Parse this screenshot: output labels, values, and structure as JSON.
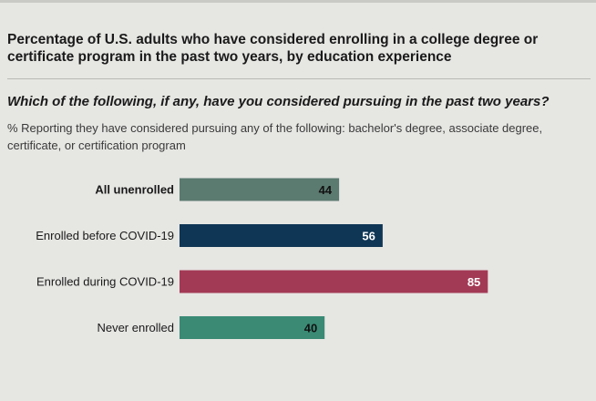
{
  "header": {
    "title": "Percentage of U.S. adults who have considered enrolling in a college degree or certificate program in the past two years, by education experience",
    "question": "Which of the following, if any, have you considered pursuing in the past two years?",
    "subtitle": "% Reporting they have considered pursuing any of the following: bachelor's degree, associate degree, certificate, or certification program"
  },
  "chart_data": {
    "type": "bar",
    "orientation": "horizontal",
    "categories": [
      "All unenrolled",
      "Enrolled before COVID-19",
      "Enrolled during COVID-19",
      "Never enrolled"
    ],
    "values": [
      44,
      56,
      85,
      40
    ],
    "bold_categories": [
      "All unenrolled"
    ],
    "bar_colors": [
      "#5b7a70",
      "#0f3655",
      "#a33a55",
      "#3a8a74"
    ],
    "value_label_colors": [
      "#111111",
      "#ffffff",
      "#ffffff",
      "#111111"
    ],
    "xlim": [
      0,
      100
    ],
    "grid": false,
    "legend": "none"
  }
}
